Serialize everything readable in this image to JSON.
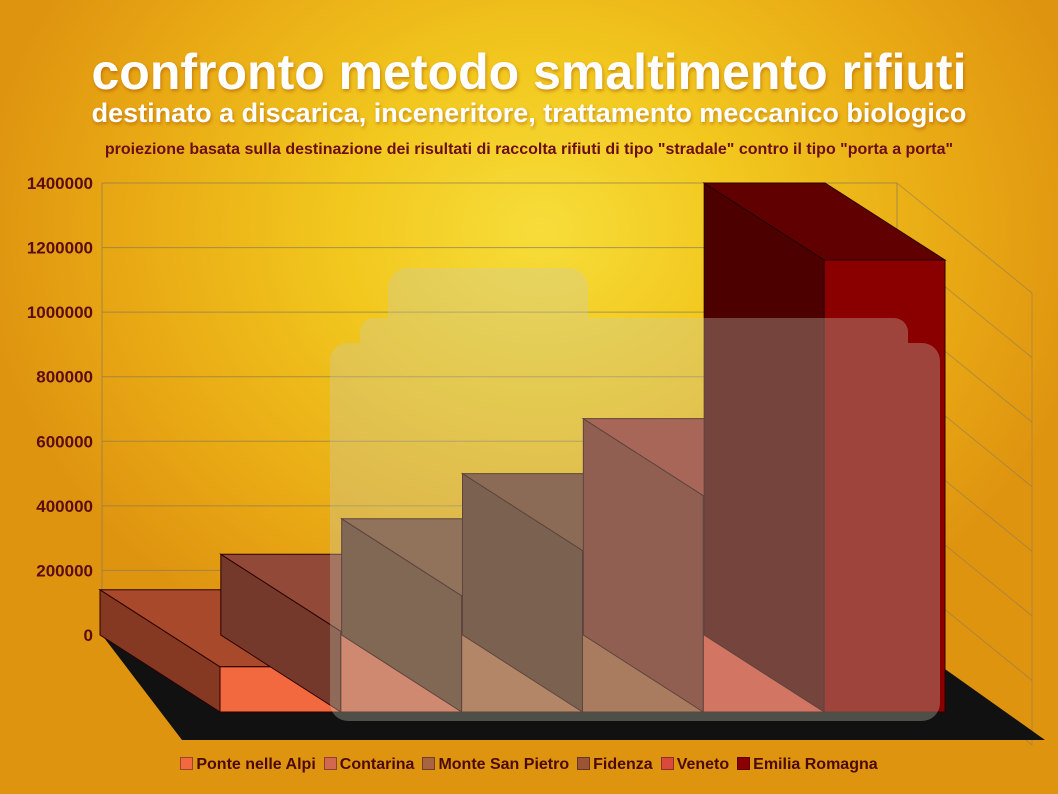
{
  "title": "confronto metodo smaltimento rifiuti",
  "subtitle": "destinato a discarica, inceneritore, trattamento meccanico biologico",
  "note": "proiezione basata sulla destinazione dei risultati di raccolta rifiuti di tipo \"stradale\" contro il tipo \"porta a porta\"",
  "chart_data": {
    "type": "bar",
    "style": "3d",
    "categories": [
      "Ponte nelle Alpi",
      "Contarina",
      "Monte San Pietro",
      "Fidenza",
      "Veneto",
      "Emilia Romagna"
    ],
    "values": [
      140000,
      250000,
      360000,
      500000,
      670000,
      1400000
    ],
    "colors": [
      "#f2683f",
      "#d2684e",
      "#a9633f",
      "#9b5434",
      "#d94a3a",
      "#8a0000"
    ],
    "yticks": [
      "0",
      "200000",
      "400000",
      "600000",
      "800000",
      "1000000",
      "1200000",
      "1400000"
    ],
    "ylim": [
      0,
      1400000
    ],
    "grid": true,
    "legend_position": "bottom"
  }
}
